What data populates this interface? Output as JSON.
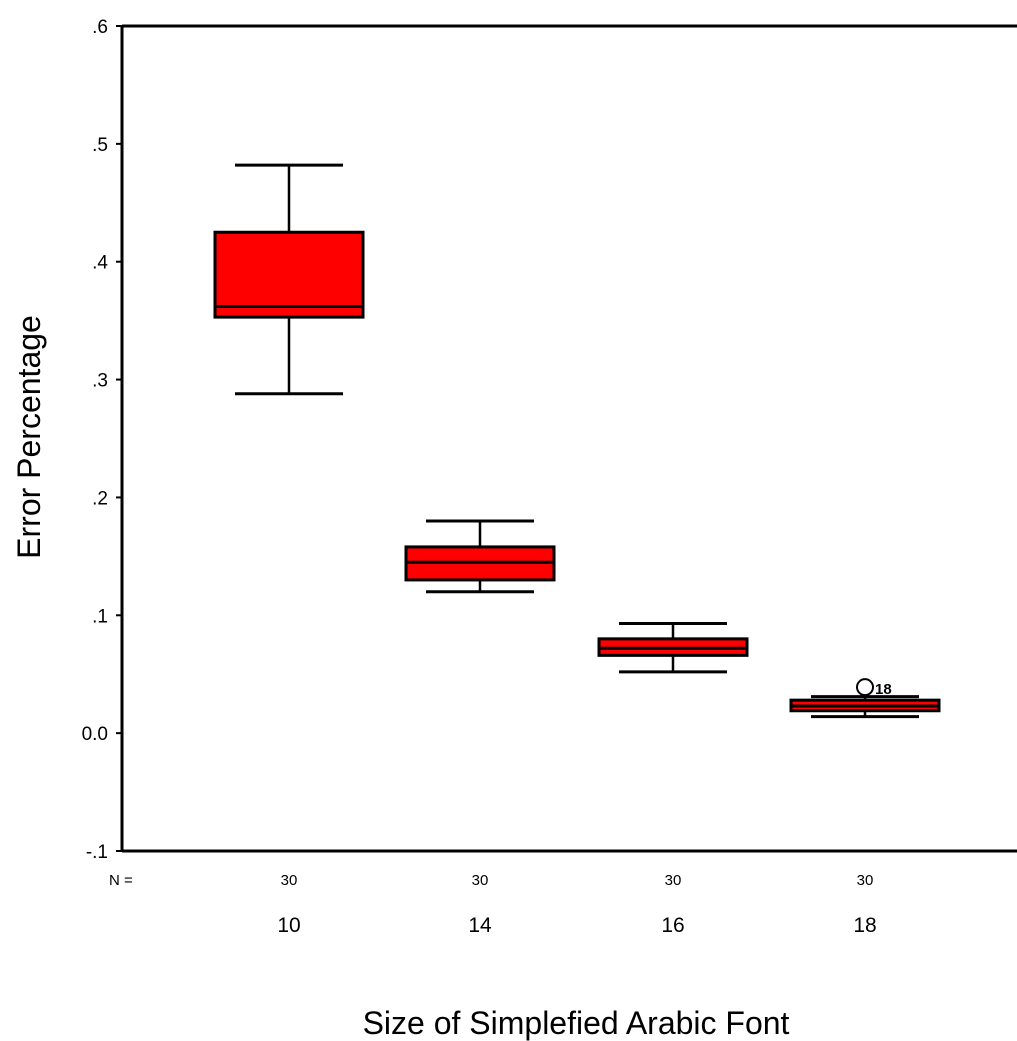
{
  "chart_data": {
    "type": "boxplot",
    "title": "",
    "xlabel": "Size of Simplefied Arabic Font",
    "ylabel": "Error Percentage",
    "ylim": [
      -0.1,
      0.6
    ],
    "yticks": [
      {
        "value": 0.6,
        "label": ".6"
      },
      {
        "value": 0.5,
        "label": ".5"
      },
      {
        "value": 0.4,
        "label": ".4"
      },
      {
        "value": 0.3,
        "label": ".3"
      },
      {
        "value": 0.2,
        "label": ".2"
      },
      {
        "value": 0.1,
        "label": ".1"
      },
      {
        "value": 0.0,
        "label": "0.0"
      },
      {
        "value": -0.1,
        "label": "-.1"
      }
    ],
    "n_label": "N =",
    "categories": [
      "10",
      "14",
      "16",
      "18"
    ],
    "n_values": [
      "30",
      "30",
      "30",
      "30"
    ],
    "box_color": "#ff0000",
    "boxes": [
      {
        "category": "10",
        "whisker_low": 0.288,
        "q1": 0.353,
        "median": 0.362,
        "q3": 0.425,
        "whisker_high": 0.482
      },
      {
        "category": "14",
        "whisker_low": 0.12,
        "q1": 0.13,
        "median": 0.145,
        "q3": 0.158,
        "whisker_high": 0.18
      },
      {
        "category": "16",
        "whisker_low": 0.052,
        "q1": 0.066,
        "median": 0.072,
        "q3": 0.08,
        "whisker_high": 0.093
      },
      {
        "category": "18",
        "whisker_low": 0.014,
        "q1": 0.019,
        "median": 0.023,
        "q3": 0.028,
        "whisker_high": 0.031
      }
    ],
    "outliers": [
      {
        "category": "18",
        "value": 0.039,
        "label": "18"
      }
    ]
  }
}
